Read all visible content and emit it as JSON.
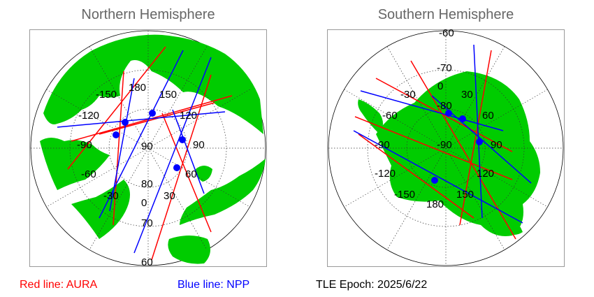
{
  "panels": {
    "north": {
      "title": "Northern Hemisphere",
      "lon_labels": [
        "180",
        "150",
        "120",
        "90",
        "60",
        "30",
        "0",
        "-30",
        "-60",
        "-90",
        "-120",
        "-150"
      ],
      "lat_labels": [
        "90",
        "80",
        "70",
        "60"
      ]
    },
    "south": {
      "title": "Southern Hemisphere",
      "lon_labels": [
        "0",
        "30",
        "60",
        "90",
        "120",
        "150",
        "180",
        "-150",
        "-120",
        "-90",
        "-60",
        "-30"
      ],
      "lat_labels": [
        "-90",
        "-80",
        "-70",
        "-60"
      ]
    }
  },
  "legend": {
    "aura": "Red line: AURA",
    "npp": "Blue line: NPP",
    "tle_epoch": "TLE Epoch: 2025/6/22"
  },
  "colors": {
    "land": "#00cc00",
    "ocean": "#ffffff",
    "aura": "#ff0000",
    "npp": "#0000ff",
    "title": "#666666",
    "grid": "#333333"
  }
}
